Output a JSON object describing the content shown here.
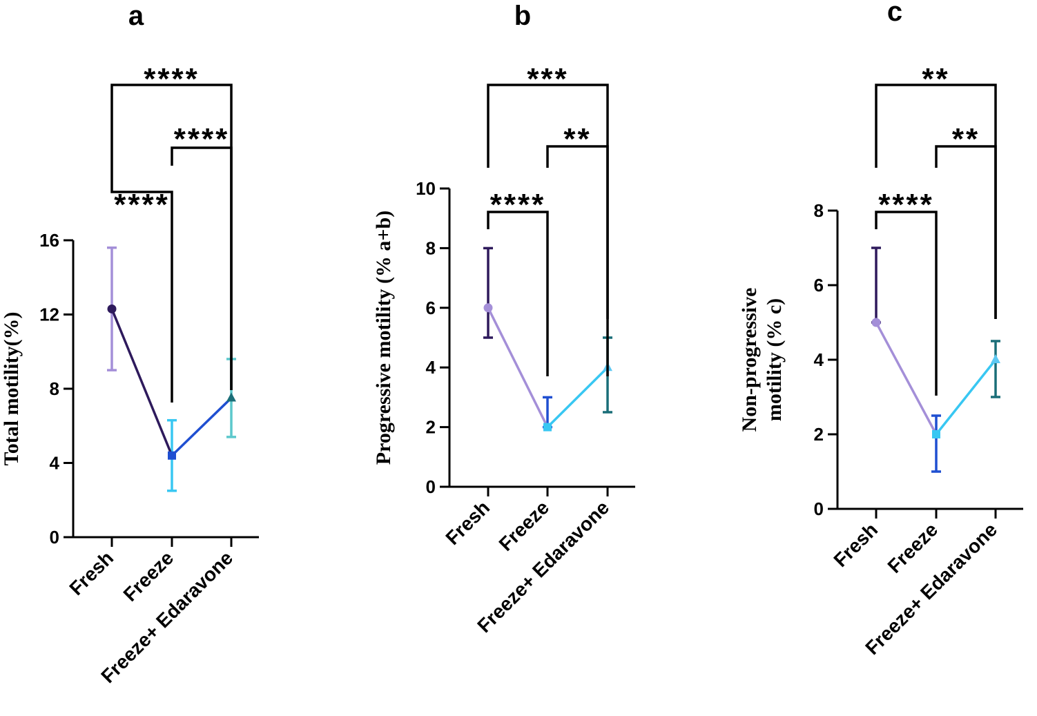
{
  "chart_data": [
    {
      "type": "line",
      "panel": "a",
      "title": "",
      "xlabel": "",
      "ylabel": "Total motility(%)",
      "ylim": [
        0,
        16
      ],
      "yticks": [
        0,
        4,
        8,
        12,
        16
      ],
      "categories": [
        "Fresh",
        "Freeze",
        "Freeze+ Edaravone"
      ],
      "values": [
        12.3,
        4.4,
        7.5
      ],
      "error_low": [
        9.0,
        2.5,
        5.4
      ],
      "error_high": [
        15.6,
        6.3,
        9.6
      ],
      "markers": [
        "circle",
        "square",
        "triangle"
      ],
      "colors": {
        "points": [
          "#2e1a5c",
          "#1f4fd1",
          "#1a6e78"
        ],
        "errorbars": [
          "#a48fd8",
          "#38c7f2",
          "#5cc8cc"
        ],
        "segments": [
          "#2e1a5c",
          "#1f4fd1"
        ]
      },
      "comparisons": [
        {
          "from": "Fresh",
          "to": "Freeze",
          "label": "****"
        },
        {
          "from": "Freeze",
          "to": "Freeze+ Edaravone",
          "label": "****"
        },
        {
          "from": "Fresh",
          "to": "Freeze+ Edaravone",
          "label": "****"
        }
      ]
    },
    {
      "type": "line",
      "panel": "b",
      "title": "",
      "xlabel": "",
      "ylabel": "Progressive motility (% a+b)",
      "ylim": [
        0,
        10
      ],
      "yticks": [
        0,
        2,
        4,
        6,
        8,
        10
      ],
      "categories": [
        "Fresh",
        "Freeze",
        "Freeze+ Edaravone"
      ],
      "values": [
        6.0,
        2.0,
        4.0
      ],
      "error_low": [
        5.0,
        2.0,
        2.5
      ],
      "error_high": [
        8.0,
        3.0,
        5.0
      ],
      "markers": [
        "circle",
        "square",
        "triangle"
      ],
      "colors": {
        "points": [
          "#a48fd8",
          "#38c7f2",
          "#5cc8f2"
        ],
        "errorbars": [
          "#2e1a5c",
          "#1f4fd1",
          "#1a6e78"
        ],
        "segments": [
          "#a48fd8",
          "#38c7f2"
        ]
      },
      "comparisons": [
        {
          "from": "Fresh",
          "to": "Freeze",
          "label": "****"
        },
        {
          "from": "Freeze",
          "to": "Freeze+ Edaravone",
          "label": "**"
        },
        {
          "from": "Fresh",
          "to": "Freeze+ Edaravone",
          "label": "***"
        }
      ]
    },
    {
      "type": "line",
      "panel": "c",
      "title": "",
      "xlabel": "",
      "ylabel_lines": [
        "Non-progressive",
        "motility (% c)"
      ],
      "ylim": [
        0,
        8
      ],
      "yticks": [
        0,
        2,
        4,
        6,
        8
      ],
      "categories": [
        "Fresh",
        "Freeze",
        "Freeze+ Edaravone"
      ],
      "values": [
        5.0,
        2.0,
        4.0
      ],
      "error_low": [
        5.0,
        1.0,
        3.0
      ],
      "error_high": [
        7.0,
        2.5,
        4.5
      ],
      "markers": [
        "circle",
        "square",
        "triangle"
      ],
      "colors": {
        "points": [
          "#a48fd8",
          "#38c7f2",
          "#5cc8f2"
        ],
        "errorbars": [
          "#2e1a5c",
          "#1f4fd1",
          "#1a6e78"
        ],
        "segments": [
          "#a48fd8",
          "#38c7f2"
        ]
      },
      "comparisons": [
        {
          "from": "Fresh",
          "to": "Freeze",
          "label": "****"
        },
        {
          "from": "Freeze",
          "to": "Freeze+ Edaravone",
          "label": "**"
        },
        {
          "from": "Fresh",
          "to": "Freeze+ Edaravone",
          "label": "**"
        }
      ]
    }
  ]
}
